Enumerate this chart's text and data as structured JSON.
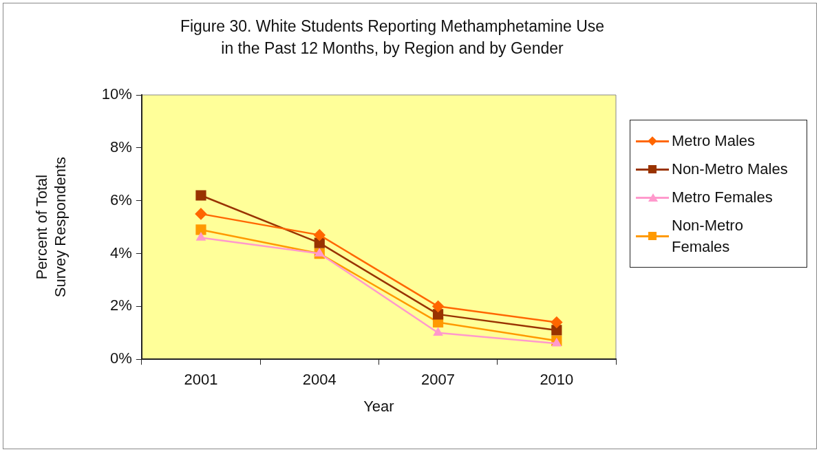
{
  "chart_data": {
    "type": "line",
    "title": "Figure 30. White Students Reporting Methamphetamine Use in the Past 12 Months, by Region and by Gender",
    "xlabel": "Year",
    "ylabel": "Percent of Total Survey Respondents",
    "categories": [
      "2001",
      "2004",
      "2007",
      "2010"
    ],
    "series": [
      {
        "name": "Metro Males",
        "color": "#ff6600",
        "marker": "diamond",
        "values": [
          5.5,
          4.7,
          2.0,
          1.4
        ]
      },
      {
        "name": "Non-Metro Males",
        "color": "#993300",
        "marker": "square",
        "values": [
          6.2,
          4.4,
          1.7,
          1.1
        ]
      },
      {
        "name": "Metro Females",
        "color": "#ff99cc",
        "marker": "triangle",
        "values": [
          4.6,
          4.0,
          1.0,
          0.6
        ]
      },
      {
        "name": "Non-Metro Females",
        "color": "#ff9900",
        "marker": "square",
        "values": [
          4.9,
          4.0,
          1.4,
          0.7
        ]
      }
    ],
    "ylim": [
      0,
      10
    ],
    "yticks": [
      {
        "value": 0,
        "label": "0%"
      },
      {
        "value": 2,
        "label": "2%"
      },
      {
        "value": 4,
        "label": "4%"
      },
      {
        "value": 6,
        "label": "6%"
      },
      {
        "value": 8,
        "label": "8%"
      },
      {
        "value": 10,
        "label": "10%"
      }
    ],
    "grid": false,
    "legend": "right"
  }
}
